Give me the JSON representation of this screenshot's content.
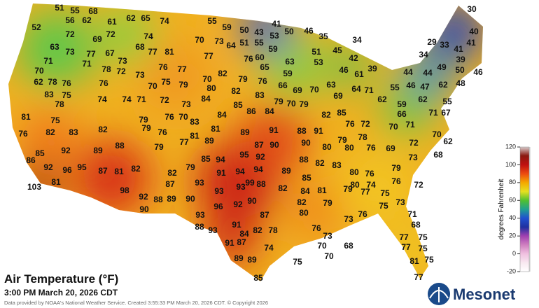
{
  "title": "Air Temperature (°F)",
  "subtitle": "3:00 PM March 20, 2026 CDT",
  "credit": "Data provided by NOAA's National Weather Service. Created 3:55:33 PM March 20, 2026 CDT. © Copyright 2026",
  "logo": "Mesonet",
  "colorbar": {
    "label": "degrees Fahrenheit",
    "ticks": [
      120,
      100,
      80,
      60,
      40,
      20,
      0,
      -20
    ],
    "lim": [
      -20,
      120
    ]
  },
  "temperatures": [
    51,
    55,
    68,
    56,
    62,
    52,
    61,
    62,
    65,
    74,
    55,
    59,
    50,
    43,
    41,
    53,
    50,
    46,
    35,
    34,
    30,
    40,
    29,
    33,
    41,
    41,
    34,
    72,
    69,
    72,
    74,
    70,
    73,
    64,
    51,
    55,
    60,
    59,
    63,
    73,
    77,
    67,
    68,
    77,
    81,
    77,
    76,
    65,
    59,
    63,
    53,
    51,
    45,
    42,
    46,
    61,
    39,
    71,
    71,
    73,
    70,
    78,
    72,
    76,
    77,
    73,
    70,
    82,
    79,
    76,
    66,
    69,
    70,
    63,
    64,
    71,
    55,
    44,
    44,
    46,
    47,
    49,
    50,
    39,
    46,
    62,
    48,
    62,
    78,
    76,
    76,
    70,
    75,
    79,
    80,
    82,
    83,
    83,
    75,
    78,
    74,
    74,
    71,
    72,
    73,
    84,
    85,
    86,
    84,
    79,
    70,
    79,
    69,
    62,
    59,
    62,
    55,
    66,
    71,
    67,
    81,
    75,
    79,
    76,
    70,
    83,
    84,
    82,
    85,
    76,
    72,
    70,
    71,
    70,
    76,
    82,
    83,
    82,
    79,
    76,
    81,
    81,
    91,
    88,
    91,
    89,
    89,
    77,
    88,
    79,
    87,
    90,
    90,
    79,
    78,
    80,
    80,
    76,
    69,
    72,
    62,
    68,
    73,
    85,
    92,
    89,
    95,
    92,
    94,
    85,
    88,
    82,
    83,
    79,
    76,
    80,
    86,
    92,
    96,
    95,
    87,
    81,
    82,
    82,
    79,
    91,
    94,
    94,
    89,
    85,
    81,
    103,
    87,
    93,
    99,
    88,
    76,
    72,
    80,
    74,
    98,
    93,
    93,
    82,
    84,
    81,
    79,
    77,
    75,
    92,
    88,
    89,
    90,
    90,
    82,
    79,
    73,
    75,
    96,
    92,
    90,
    93,
    87,
    80,
    73,
    76,
    71,
    88,
    93,
    91,
    84,
    82,
    78,
    76,
    68,
    73,
    87,
    91,
    77,
    75,
    70,
    68,
    77,
    75,
    74,
    70,
    89,
    89,
    81,
    75,
    75,
    77,
    85
  ]
}
